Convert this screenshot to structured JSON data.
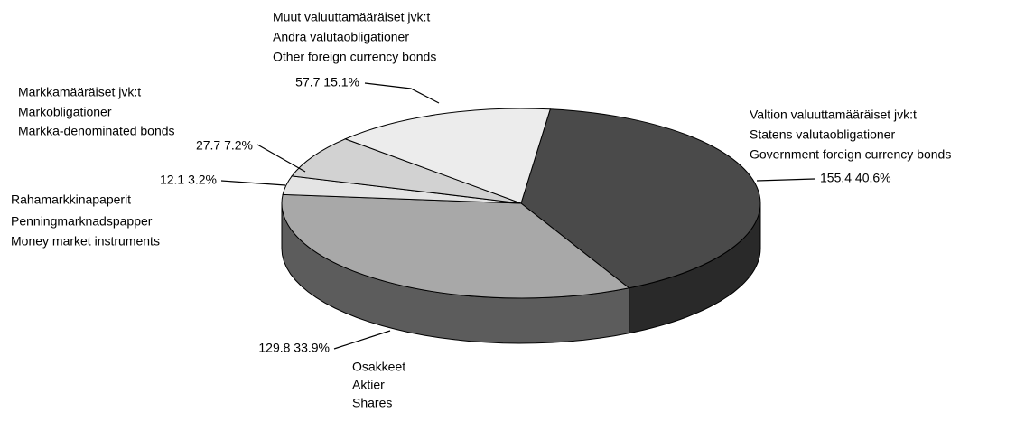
{
  "chart_data": {
    "type": "pie",
    "categories": [
      [
        "Valtion valuuttamääräiset jvk:t",
        "Statens valutaobligationer",
        "Government foreign currency bonds"
      ],
      [
        "Osakkeet",
        "Aktier",
        "Shares"
      ],
      [
        "Rahamarkkinapaperit",
        "Penningmarknadspapper",
        "Money market instruments"
      ],
      [
        "Markkamääräiset jvk:t",
        "Markobligationer",
        "Markka-denominated bonds"
      ],
      [
        "Muut valuuttamääräiset jvk:t",
        "Andra valutaobligationer",
        "Other foreign currency bonds"
      ]
    ],
    "values": [
      155.4,
      129.8,
      12.1,
      27.7,
      57.7
    ],
    "value_labels": [
      "155.4  40.6%",
      "129.8  33.9%",
      "12.1  3.2%",
      "27.7  7.2%",
      "57.7  15.1%"
    ],
    "colors": [
      "#4a4a4a",
      "#a8a8a8",
      "#e4e4e4",
      "#d2d2d2",
      "#ececec"
    ]
  }
}
